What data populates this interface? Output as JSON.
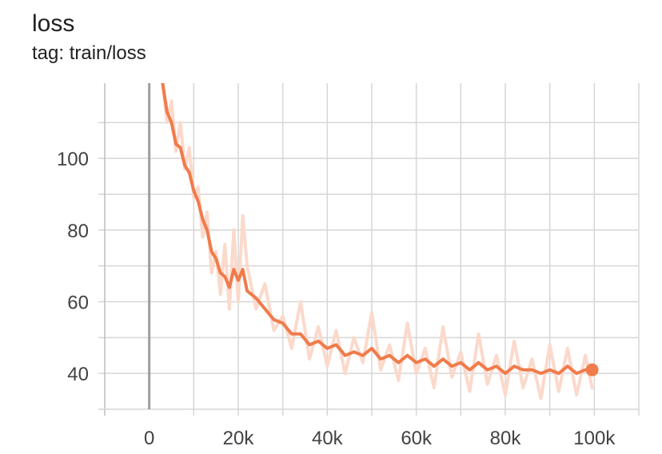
{
  "header": {
    "title": "loss",
    "subtitle": "tag: train/loss"
  },
  "chart_data": {
    "type": "line",
    "title": "loss",
    "subtitle": "tag: train/loss",
    "xlabel": "",
    "ylabel": "",
    "xlim": [
      -10000,
      110000
    ],
    "ylim": [
      30,
      121
    ],
    "grid": true,
    "legend": "none",
    "x_ticks": [
      {
        "value": 0,
        "label": "0"
      },
      {
        "value": 20000,
        "label": "20k"
      },
      {
        "value": 40000,
        "label": "40k"
      },
      {
        "value": 60000,
        "label": "60k"
      },
      {
        "value": 80000,
        "label": "80k"
      },
      {
        "value": 100000,
        "label": "100k"
      }
    ],
    "y_ticks": [
      {
        "value": 40,
        "label": "40"
      },
      {
        "value": 60,
        "label": "60"
      },
      {
        "value": 80,
        "label": "80"
      },
      {
        "value": 100,
        "label": "100"
      }
    ],
    "colors": {
      "smoothed": "#f07b4b",
      "raw": "#fbd9cb",
      "grid": "#d6d6d6",
      "axis_zero": "#9e9e9e"
    },
    "series": [
      {
        "role": "raw",
        "x": [
          3000,
          4000,
          5000,
          6000,
          7000,
          8000,
          9000,
          10000,
          11000,
          12000,
          13000,
          14000,
          15000,
          16000,
          17000,
          18000,
          19000,
          20000,
          21000,
          22000,
          24000,
          26000,
          28000,
          30000,
          32000,
          34000,
          36000,
          38000,
          40000,
          42000,
          44000,
          46000,
          48000,
          50000,
          52000,
          54000,
          56000,
          58000,
          60000,
          62000,
          64000,
          66000,
          68000,
          70000,
          72000,
          74000,
          76000,
          78000,
          80000,
          82000,
          84000,
          86000,
          88000,
          90000,
          92000,
          94000,
          96000,
          98000,
          99500
        ],
        "y": [
          121,
          110,
          116,
          102,
          110,
          97,
          103,
          89,
          92,
          78,
          85,
          68,
          74,
          62,
          76,
          58,
          80,
          60,
          84,
          70,
          58,
          65,
          52,
          56,
          47,
          60,
          44,
          53,
          42,
          52,
          40,
          50,
          43,
          57,
          41,
          48,
          38,
          54,
          40,
          47,
          36,
          53,
          39,
          46,
          35,
          51,
          37,
          45,
          34,
          49,
          36,
          44,
          33,
          48,
          35,
          47,
          34,
          45,
          36
        ]
      },
      {
        "role": "smoothed",
        "x": [
          3000,
          4000,
          5000,
          6000,
          7000,
          8000,
          9000,
          10000,
          11000,
          12000,
          13000,
          14000,
          15000,
          16000,
          17000,
          18000,
          19000,
          20000,
          21000,
          22000,
          24000,
          26000,
          28000,
          30000,
          32000,
          34000,
          36000,
          38000,
          40000,
          42000,
          44000,
          46000,
          48000,
          50000,
          52000,
          54000,
          56000,
          58000,
          60000,
          62000,
          64000,
          66000,
          68000,
          70000,
          72000,
          74000,
          76000,
          78000,
          80000,
          82000,
          84000,
          86000,
          88000,
          90000,
          92000,
          94000,
          96000,
          98000,
          99500
        ],
        "y": [
          121,
          113,
          110,
          104,
          103,
          98,
          96,
          91,
          88,
          83,
          80,
          74,
          72,
          68,
          67,
          64,
          69,
          66,
          69,
          63,
          61,
          58,
          55,
          54,
          51,
          51,
          48,
          49,
          47,
          48,
          45,
          46,
          45,
          47,
          44,
          45,
          43,
          45,
          43,
          44,
          42,
          44,
          42,
          43,
          41,
          43,
          41,
          42,
          40,
          42,
          41,
          41,
          40,
          41,
          40,
          42,
          40,
          41,
          41
        ]
      }
    ]
  }
}
